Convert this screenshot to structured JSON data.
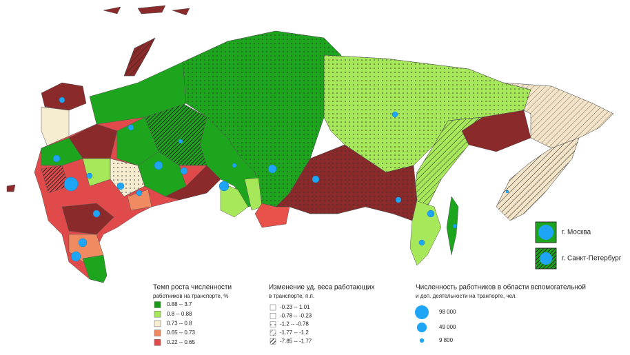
{
  "map": {
    "insets": [
      {
        "label": "г. Москва"
      },
      {
        "label": "г. Санкт-Петербург"
      }
    ]
  },
  "legend_growth": {
    "title": "Темп роста численности",
    "subtitle": "работников на транспорте, %",
    "items": [
      {
        "label": "0.88 -- 3.7",
        "color": "#1a9a1a"
      },
      {
        "label": "0.8 -- 0.88",
        "color": "#a7e75a"
      },
      {
        "label": "0.73 -- 0.8",
        "color": "#f6ecd0"
      },
      {
        "label": "0.65 -- 0.73",
        "color": "#f08a60"
      },
      {
        "label": "0.22 -- 0.65",
        "color": "#e04a4a"
      }
    ]
  },
  "legend_share": {
    "title": "Изменение уд. веса работающих",
    "subtitle": "в транспорте, п.п.",
    "items": [
      {
        "label": "-0.23 -- 1.01",
        "pattern": "none"
      },
      {
        "label": "-0.78 -- -0.23",
        "pattern": "none"
      },
      {
        "label": "-1.2 -- -0.78",
        "pattern": "dots"
      },
      {
        "label": "-1.77 -- -1.2",
        "pattern": "hatch"
      },
      {
        "label": "-7.85 -- -1.77",
        "pattern": "hatch-dense"
      }
    ]
  },
  "legend_size": {
    "title": "Численность работников в области вспомогательной",
    "subtitle": "и доп. деятельности на транпорте, чел.",
    "items": [
      {
        "value": 98000,
        "label": "98 000"
      },
      {
        "value": 49000,
        "label": "49 000"
      },
      {
        "value": 9800,
        "label": "9 800"
      }
    ]
  }
}
